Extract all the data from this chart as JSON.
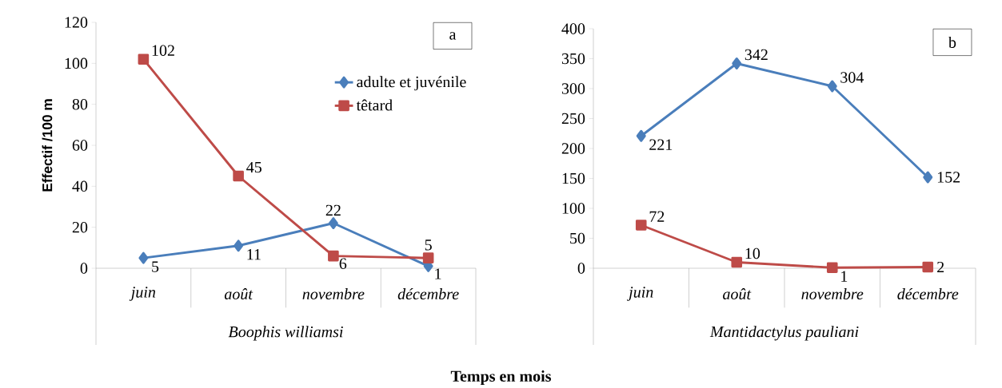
{
  "chart_data": [
    {
      "type": "line",
      "categories": [
        "juin",
        "août",
        "novembre",
        "décembre"
      ],
      "xlabel": "Boophis williamsi",
      "ylabel": "Effectif /100 m",
      "ylim": [
        0,
        120
      ],
      "yticks": [
        0,
        20,
        40,
        60,
        80,
        100,
        120
      ],
      "data_labels": true,
      "legend": "right",
      "annotations": [
        "a",
        "Temps en mois"
      ],
      "series": [
        {
          "name": "adulte et juvénile",
          "color": "#4a7ebb",
          "marker": "diamond",
          "values": [
            5,
            11,
            22,
            1
          ]
        },
        {
          "name": "têtard",
          "color": "#be4b48",
          "marker": "square",
          "values": [
            102,
            45,
            6,
            5
          ]
        }
      ]
    },
    {
      "type": "line",
      "categories": [
        "juin",
        "août",
        "novembre",
        "décembre"
      ],
      "xlabel": "Mantidactylus pauliani",
      "ylim": [
        0,
        400
      ],
      "yticks": [
        0,
        50,
        100,
        150,
        200,
        250,
        300,
        350,
        400
      ],
      "data_labels": true,
      "annotations": [
        "b"
      ],
      "series": [
        {
          "color": "#4a7ebb",
          "marker": "diamond",
          "values": [
            221,
            342,
            304,
            152
          ]
        },
        {
          "color": "#be4b48",
          "marker": "square",
          "values": [
            72,
            10,
            1,
            2
          ]
        }
      ]
    }
  ]
}
